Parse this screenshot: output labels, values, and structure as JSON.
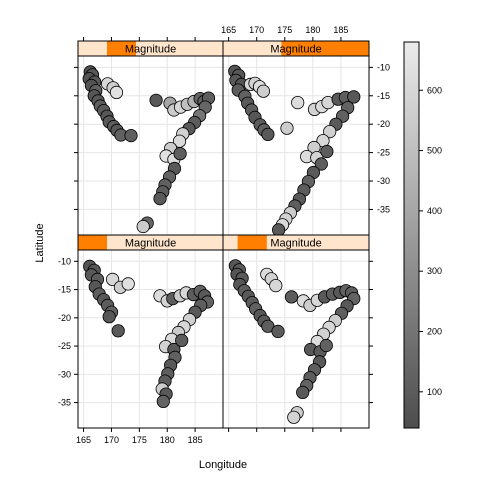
{
  "chart_data": {
    "type": "scatter",
    "xlabel": "Longitude",
    "ylabel": "Latitude",
    "xlim": [
      164,
      190
    ],
    "ylim": [
      -39.5,
      -8
    ],
    "xticks": [
      165,
      170,
      175,
      180,
      185
    ],
    "yticks": [
      -10,
      -15,
      -20,
      -25,
      -30,
      -35
    ],
    "grid": true,
    "colorbar": {
      "ticks": [
        100,
        200,
        300,
        400,
        500,
        600
      ],
      "range": [
        40,
        680
      ],
      "low_color": "#4d4d4d",
      "high_color": "#ebebeb"
    },
    "strip_label": "Magnitude",
    "panels": [
      {
        "strip": "Magnitude",
        "range": [
          0.2,
          0.4
        ],
        "points": [
          [
            166.2,
            -10.8,
            60
          ],
          [
            166.6,
            -11.3,
            80
          ],
          [
            166.0,
            -12.0,
            70
          ],
          [
            167.0,
            -12.6,
            90
          ],
          [
            166.4,
            -13.2,
            70
          ],
          [
            167.2,
            -14.1,
            120
          ],
          [
            166.9,
            -15.0,
            80
          ],
          [
            167.6,
            -15.9,
            90
          ],
          [
            168.0,
            -16.8,
            110
          ],
          [
            168.6,
            -17.6,
            100
          ],
          [
            169.2,
            -18.6,
            80
          ],
          [
            169.6,
            -19.6,
            90
          ],
          [
            170.4,
            -20.4,
            100
          ],
          [
            171.0,
            -21.1,
            90
          ],
          [
            171.7,
            -21.9,
            120
          ],
          [
            173.5,
            -22.0,
            110
          ],
          [
            169.3,
            -12.9,
            600
          ],
          [
            170.3,
            -13.6,
            560
          ],
          [
            170.9,
            -14.4,
            640
          ],
          [
            178.0,
            -15.8,
            90
          ],
          [
            180.5,
            -16.3,
            400
          ],
          [
            181.2,
            -17.5,
            550
          ],
          [
            182.4,
            -17.0,
            600
          ],
          [
            183.6,
            -16.5,
            500
          ],
          [
            184.8,
            -16.0,
            450
          ],
          [
            185.9,
            -15.5,
            130
          ],
          [
            186.6,
            -16.0,
            120
          ],
          [
            187.4,
            -15.4,
            110
          ],
          [
            186.8,
            -17.0,
            140
          ],
          [
            185.8,
            -18.5,
            200
          ],
          [
            184.9,
            -19.7,
            100
          ],
          [
            183.9,
            -20.8,
            90
          ],
          [
            182.8,
            -21.7,
            580
          ],
          [
            182.2,
            -23.0,
            610
          ],
          [
            180.6,
            -24.3,
            550
          ],
          [
            179.8,
            -25.6,
            640
          ],
          [
            181.2,
            -26.2,
            620
          ],
          [
            182.3,
            -25.2,
            110
          ],
          [
            181.3,
            -27.8,
            90
          ],
          [
            180.4,
            -29.3,
            130
          ],
          [
            179.6,
            -30.7,
            120
          ],
          [
            179.2,
            -31.9,
            100
          ],
          [
            178.7,
            -33.1,
            90
          ],
          [
            176.4,
            -37.4,
            140
          ],
          [
            175.7,
            -38.0,
            550
          ]
        ]
      },
      {
        "strip": "Magnitude",
        "range": [
          0.4,
          1.0
        ],
        "points": [
          [
            166.1,
            -10.7,
            70
          ],
          [
            166.8,
            -11.4,
            80
          ],
          [
            166.3,
            -12.3,
            90
          ],
          [
            167.3,
            -13.0,
            70
          ],
          [
            166.7,
            -14.0,
            100
          ],
          [
            167.9,
            -15.1,
            120
          ],
          [
            168.4,
            -16.3,
            90
          ],
          [
            169.1,
            -17.5,
            110
          ],
          [
            169.7,
            -18.8,
            80
          ],
          [
            170.6,
            -20.1,
            100
          ],
          [
            171.3,
            -21.0,
            120
          ],
          [
            172.0,
            -21.8,
            90
          ],
          [
            168.9,
            -13.0,
            600
          ],
          [
            169.7,
            -12.8,
            580
          ],
          [
            170.5,
            -13.4,
            620
          ],
          [
            171.2,
            -14.2,
            560
          ],
          [
            175.4,
            -20.7,
            560
          ],
          [
            177.3,
            -16.2,
            620
          ],
          [
            180.3,
            -17.4,
            580
          ],
          [
            181.6,
            -16.9,
            610
          ],
          [
            182.7,
            -16.2,
            590
          ],
          [
            184.5,
            -15.6,
            90
          ],
          [
            185.8,
            -15.3,
            110
          ],
          [
            187.3,
            -15.2,
            90
          ],
          [
            186.2,
            -17.1,
            130
          ],
          [
            185.3,
            -18.6,
            120
          ],
          [
            184.1,
            -20.0,
            90
          ],
          [
            183.0,
            -21.3,
            570
          ],
          [
            181.8,
            -22.9,
            600
          ],
          [
            180.2,
            -24.1,
            560
          ],
          [
            178.9,
            -25.7,
            620
          ],
          [
            180.7,
            -25.9,
            590
          ],
          [
            182.5,
            -24.8,
            100
          ],
          [
            181.5,
            -27.0,
            110
          ],
          [
            180.1,
            -28.5,
            90
          ],
          [
            179.2,
            -30.1,
            120
          ],
          [
            178.4,
            -31.6,
            100
          ],
          [
            177.6,
            -33.2,
            90
          ],
          [
            176.8,
            -34.4,
            110
          ],
          [
            176.0,
            -35.6,
            560
          ],
          [
            175.2,
            -36.7,
            580
          ],
          [
            174.6,
            -37.7,
            610
          ],
          [
            173.9,
            -38.6,
            90
          ]
        ]
      },
      {
        "strip": "Magnitude",
        "range": [
          0.0,
          0.2
        ],
        "points": [
          [
            166.1,
            -10.9,
            70
          ],
          [
            166.9,
            -11.6,
            80
          ],
          [
            166.4,
            -12.4,
            90
          ],
          [
            167.5,
            -13.2,
            100
          ],
          [
            167.1,
            -14.5,
            80
          ],
          [
            167.8,
            -15.8,
            110
          ],
          [
            168.6,
            -16.8,
            90
          ],
          [
            169.3,
            -17.8,
            100
          ],
          [
            170.0,
            -19.0,
            120
          ],
          [
            169.6,
            -19.8,
            80
          ],
          [
            171.2,
            -22.3,
            90
          ],
          [
            170.2,
            -13.2,
            600
          ],
          [
            171.6,
            -14.6,
            560
          ],
          [
            173.0,
            -14.0,
            630
          ],
          [
            178.7,
            -16.1,
            620
          ],
          [
            180.0,
            -17.0,
            580
          ],
          [
            181.0,
            -16.6,
            110
          ],
          [
            182.3,
            -16.1,
            550
          ],
          [
            183.4,
            -15.6,
            600
          ],
          [
            184.7,
            -15.9,
            100
          ],
          [
            185.9,
            -15.3,
            120
          ],
          [
            186.7,
            -16.1,
            90
          ],
          [
            187.2,
            -17.2,
            130
          ],
          [
            186.0,
            -17.8,
            110
          ],
          [
            185.0,
            -19.0,
            90
          ],
          [
            184.0,
            -20.3,
            570
          ],
          [
            183.0,
            -21.6,
            600
          ],
          [
            182.0,
            -22.6,
            550
          ],
          [
            180.8,
            -23.8,
            610
          ],
          [
            179.7,
            -25.1,
            580
          ],
          [
            181.2,
            -25.6,
            90
          ],
          [
            182.6,
            -24.0,
            100
          ],
          [
            181.4,
            -27.0,
            120
          ],
          [
            180.6,
            -28.4,
            90
          ],
          [
            180.1,
            -29.9,
            110
          ],
          [
            179.6,
            -31.2,
            100
          ],
          [
            179.1,
            -32.6,
            560
          ],
          [
            179.8,
            -33.5,
            90
          ],
          [
            179.3,
            -34.8,
            130
          ]
        ]
      },
      {
        "strip": "Magnitude",
        "range": [
          0.1,
          0.3
        ],
        "points": [
          [
            166.2,
            -10.8,
            80
          ],
          [
            166.9,
            -11.5,
            90
          ],
          [
            166.5,
            -12.3,
            70
          ],
          [
            167.4,
            -13.0,
            100
          ],
          [
            167.0,
            -14.1,
            80
          ],
          [
            167.8,
            -15.2,
            110
          ],
          [
            168.5,
            -16.2,
            90
          ],
          [
            169.2,
            -17.3,
            100
          ],
          [
            169.8,
            -18.4,
            120
          ],
          [
            170.6,
            -19.6,
            80
          ],
          [
            171.3,
            -20.6,
            90
          ],
          [
            172.0,
            -21.5,
            110
          ],
          [
            173.8,
            -22.4,
            100
          ],
          [
            171.8,
            -12.3,
            620
          ],
          [
            172.6,
            -13.1,
            580
          ],
          [
            173.4,
            -14.3,
            600
          ],
          [
            176.2,
            -16.3,
            100
          ],
          [
            178.3,
            -17.0,
            620
          ],
          [
            179.5,
            -17.8,
            560
          ],
          [
            180.8,
            -16.9,
            600
          ],
          [
            182.1,
            -16.3,
            90
          ],
          [
            183.5,
            -15.8,
            110
          ],
          [
            184.8,
            -15.5,
            90
          ],
          [
            185.9,
            -15.2,
            120
          ],
          [
            186.9,
            -15.6,
            100
          ],
          [
            187.3,
            -16.6,
            130
          ],
          [
            186.1,
            -17.9,
            90
          ],
          [
            185.1,
            -19.2,
            110
          ],
          [
            184.0,
            -20.5,
            560
          ],
          [
            182.9,
            -21.7,
            600
          ],
          [
            181.9,
            -22.9,
            580
          ],
          [
            180.8,
            -24.2,
            620
          ],
          [
            179.6,
            -25.6,
            90
          ],
          [
            181.3,
            -26.0,
            100
          ],
          [
            182.4,
            -24.9,
            120
          ],
          [
            181.2,
            -27.8,
            90
          ],
          [
            180.3,
            -29.2,
            110
          ],
          [
            179.5,
            -30.6,
            100
          ],
          [
            178.9,
            -32.0,
            130
          ],
          [
            178.2,
            -33.2,
            90
          ],
          [
            177.2,
            -36.8,
            560
          ],
          [
            176.6,
            -37.6,
            580
          ]
        ]
      }
    ]
  }
}
